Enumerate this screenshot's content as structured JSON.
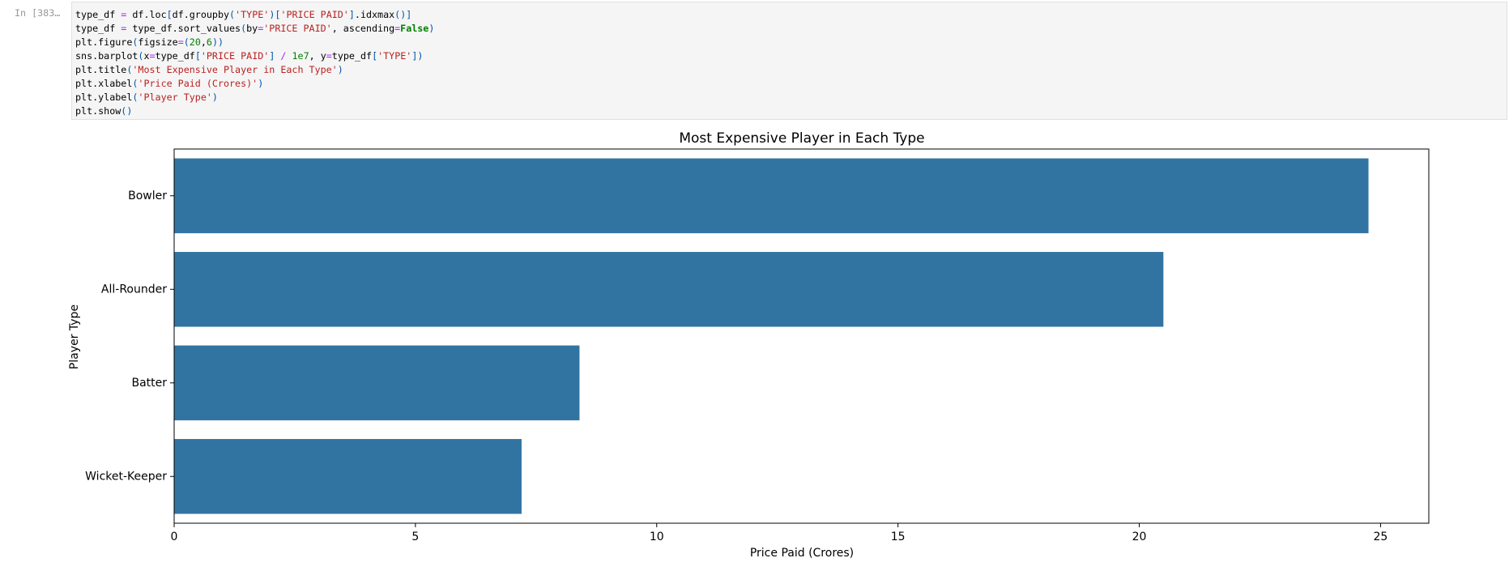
{
  "notebook": {
    "prompt": "In [383…",
    "code_lines": [
      "type_df = df.loc[df.groupby('TYPE')['PRICE PAID'].idxmax()]",
      "type_df = type_df.sort_values(by='PRICE PAID', ascending=False)",
      "plt.figure(figsize=(20,6))",
      "sns.barplot(x=type_df['PRICE PAID'] / 1e7, y=type_df['TYPE'])",
      "plt.title('Most Expensive Player in Each Type')",
      "plt.xlabel('Price Paid (Crores)')",
      "plt.ylabel('Player Type')",
      "plt.show()"
    ]
  },
  "chart_data": {
    "type": "bar",
    "orientation": "horizontal",
    "title": "Most Expensive Player in Each Type",
    "xlabel": "Price Paid (Crores)",
    "ylabel": "Player Type",
    "categories": [
      "Bowler",
      "All-Rounder",
      "Batter",
      "Wicket-Keeper"
    ],
    "values": [
      24.75,
      20.5,
      8.4,
      7.2
    ],
    "color": "#3274a1",
    "xlim": [
      0,
      26
    ],
    "xticks": [
      0,
      5,
      10,
      15,
      20,
      25
    ],
    "grid": false
  }
}
